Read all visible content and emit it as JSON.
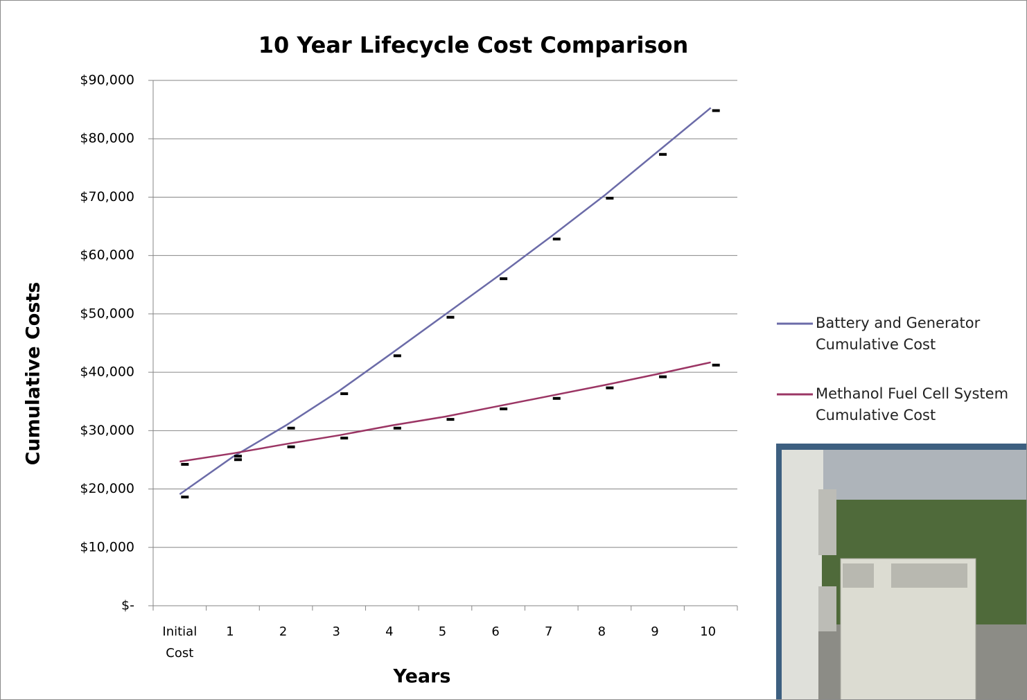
{
  "chart_data": {
    "type": "line",
    "title": "10 Year Lifecycle Cost Comparison",
    "x_label": "Years",
    "y_label": "Cumulative Costs",
    "categories": [
      "Initial Cost",
      "1",
      "2",
      "3",
      "4",
      "5",
      "6",
      "7",
      "8",
      "9",
      "10"
    ],
    "ylim": [
      0,
      90000
    ],
    "yticks": [
      {
        "value": 0,
        "label": "$-"
      },
      {
        "value": 10000,
        "label": "$10,000"
      },
      {
        "value": 20000,
        "label": "$20,000"
      },
      {
        "value": 30000,
        "label": "$30,000"
      },
      {
        "value": 40000,
        "label": "$40,000"
      },
      {
        "value": 50000,
        "label": "$50,000"
      },
      {
        "value": 60000,
        "label": "$60,000"
      },
      {
        "value": 70000,
        "label": "$70,000"
      },
      {
        "value": 80000,
        "label": "$80,000"
      },
      {
        "value": 90000,
        "label": "$90,000"
      }
    ],
    "grid": true,
    "legend": "right",
    "series": [
      {
        "name": "Battery and Generator Cumulative Cost",
        "color": "#6b6ba8",
        "values": [
          19100,
          25500,
          30900,
          36800,
          43300,
          49900,
          56500,
          63300,
          70300,
          77800,
          85300
        ]
      },
      {
        "name": "Methanol Fuel Cell System Cumulative Cost",
        "color": "#9b3564",
        "values": [
          24700,
          26100,
          27700,
          29200,
          30900,
          32400,
          34200,
          36000,
          37800,
          39700,
          41700
        ]
      }
    ]
  }
}
